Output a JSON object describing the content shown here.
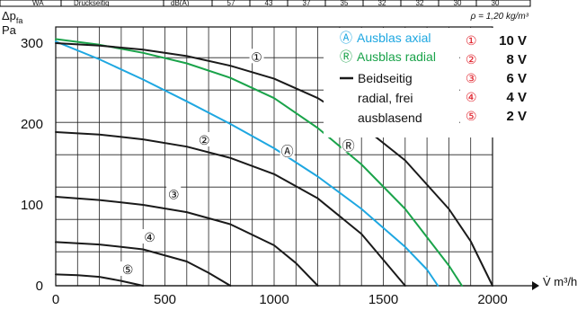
{
  "top_table": {
    "row_label": "WA",
    "row_text": "Druckseitig",
    "unit": "dB(A)",
    "values": [
      "57",
      "43",
      "37",
      "35",
      "32",
      "32",
      "30",
      "30"
    ]
  },
  "chart_data": {
    "type": "line",
    "density_note": "ρ = 1,20 kg/m³",
    "ylabel_main": "Δp",
    "ylabel_sub": "fa",
    "ylabel_unit": "Pa",
    "xlabel": "V̇ m³/h",
    "xlim": [
      0,
      2000
    ],
    "ylim": [
      0,
      320
    ],
    "xticks": [
      0,
      500,
      1000,
      1500,
      2000
    ],
    "xtick_labels": [
      "0",
      "500",
      "1000",
      "1500",
      "2000"
    ],
    "yticks": [
      0,
      100,
      200,
      300
    ],
    "ytick_labels": [
      "0",
      "100",
      "200",
      "300"
    ],
    "grid": true,
    "legend_position": "top-right",
    "colors": {
      "black": "#1a1a1a",
      "blue": "#1ea7e1",
      "green": "#1aa34a",
      "red": "#e0202a"
    },
    "series": [
      {
        "name": "Ausblas axial",
        "color": "#1ea7e1",
        "x": [
          0,
          200,
          400,
          600,
          800,
          1000,
          1200,
          1400,
          1600,
          1700,
          1750
        ],
        "y": [
          302,
          280,
          255,
          228,
          200,
          170,
          135,
          95,
          48,
          20,
          0
        ]
      },
      {
        "name": "Ausblas radial",
        "color": "#1aa34a",
        "x": [
          0,
          200,
          400,
          600,
          800,
          1000,
          1200,
          1400,
          1600,
          1800,
          1860
        ],
        "y": [
          305,
          298,
          288,
          275,
          257,
          232,
          195,
          150,
          95,
          25,
          0
        ]
      },
      {
        "name": "Beidseitig radial, frei ausblasend",
        "curve_label": "10 V",
        "color": "#1a1a1a",
        "x": [
          0,
          200,
          400,
          600,
          800,
          1000,
          1200,
          1400,
          1600,
          1800,
          1900,
          2000
        ],
        "y": [
          300,
          297,
          292,
          284,
          272,
          256,
          232,
          198,
          155,
          95,
          55,
          0
        ]
      },
      {
        "name": "8 V",
        "color": "#1a1a1a",
        "x": [
          0,
          200,
          400,
          600,
          800,
          1000,
          1200,
          1400,
          1600
        ],
        "y": [
          190,
          187,
          181,
          172,
          158,
          138,
          108,
          64,
          0
        ]
      },
      {
        "name": "6 V",
        "color": "#1a1a1a",
        "x": [
          0,
          200,
          400,
          600,
          800,
          1000,
          1100,
          1200
        ],
        "y": [
          110,
          106,
          100,
          91,
          76,
          50,
          28,
          0
        ]
      },
      {
        "name": "4 V",
        "color": "#1a1a1a",
        "x": [
          0,
          200,
          400,
          600,
          700,
          800
        ],
        "y": [
          54,
          51,
          45,
          30,
          16,
          0
        ]
      },
      {
        "name": "2 V",
        "color": "#1a1a1a",
        "x": [
          0,
          100,
          200,
          300,
          400
        ],
        "y": [
          14,
          13,
          11,
          6,
          0
        ]
      }
    ],
    "curve_markers": [
      {
        "symbol": "①",
        "x": 920,
        "y": 283,
        "color": "#e0202a"
      },
      {
        "symbol": "②",
        "x": 680,
        "y": 180,
        "color": "#e0202a"
      },
      {
        "symbol": "③",
        "x": 540,
        "y": 113,
        "color": "#e0202a"
      },
      {
        "symbol": "④",
        "x": 430,
        "y": 60,
        "color": "#e0202a"
      },
      {
        "symbol": "⑤",
        "x": 330,
        "y": 20,
        "color": "#e0202a"
      },
      {
        "symbol": "Ⓐ",
        "x": 1060,
        "y": 166,
        "color": "#1ea7e1"
      },
      {
        "symbol": "Ⓡ",
        "x": 1340,
        "y": 173,
        "color": "#1aa34a"
      }
    ],
    "legend": {
      "axial_symbol": "Ⓐ",
      "axial_label": "Ausblas axial",
      "radial_symbol": "Ⓡ",
      "radial_label": "Ausblas radial",
      "black_line_1": "Beidseitig",
      "black_line_2": "radial, frei",
      "black_line_3": "ausblasend",
      "speeds": [
        {
          "symbol": "①",
          "label": "10 V"
        },
        {
          "symbol": "②",
          "label": "8 V"
        },
        {
          "symbol": "③",
          "label": "6 V"
        },
        {
          "symbol": "④",
          "label": "4 V"
        },
        {
          "symbol": "⑤",
          "label": "2 V"
        }
      ]
    }
  }
}
